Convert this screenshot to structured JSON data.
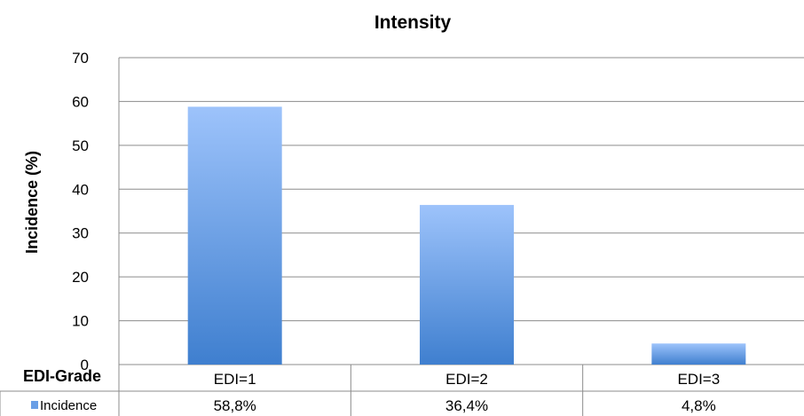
{
  "chart_data": {
    "type": "bar",
    "title": "Intensity",
    "xlabel": "EDI-Grade",
    "ylabel": "Incidence (%)",
    "ylim": [
      0,
      70
    ],
    "yticks": [
      "0",
      "10",
      "20",
      "30",
      "40",
      "50",
      "60",
      "70"
    ],
    "grid": true,
    "categories": [
      "EDI=1",
      "EDI=2",
      "EDI=3"
    ],
    "series": [
      {
        "name": "Incidence",
        "values": [
          58.8,
          36.4,
          4.8
        ],
        "labels": [
          "58,8%",
          "36,4%",
          "4,8%"
        ],
        "color_top": "#9dc3fb",
        "color_bottom": "#3f7fcf"
      }
    ],
    "data_table": {
      "header": "EDI-Grade",
      "legend_key": "Incidence"
    }
  }
}
